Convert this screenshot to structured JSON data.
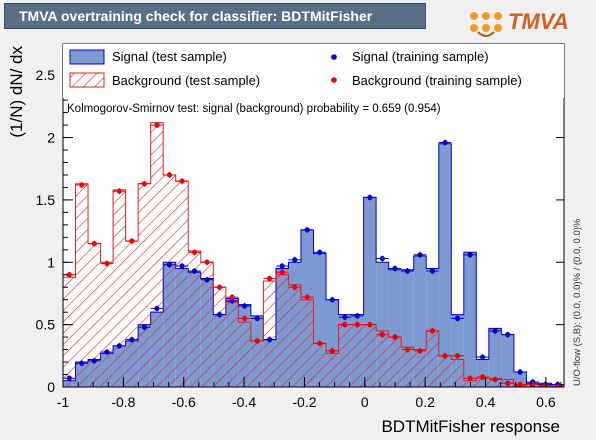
{
  "header": {
    "title": "TMVA overtraining check for classifier: BDTMitFisher",
    "logo_text": "TMVA"
  },
  "chart_data": {
    "type": "bar",
    "xlabel": "BDTMitFisher response",
    "ylabel": "(1/N) dN/ dx",
    "xlim": [
      -1.0,
      0.66
    ],
    "ylim": [
      0,
      2.75
    ],
    "x_ticks": [
      -1,
      -0.8,
      -0.6,
      -0.4,
      -0.2,
      0,
      0.2,
      0.4,
      0.6
    ],
    "x_tick_labels": [
      "-1",
      "-0.8",
      "-0.6",
      "-0.4",
      "-0.2",
      "0",
      "0.2",
      "0.4",
      "0.6"
    ],
    "y_ticks": [
      0,
      0.5,
      1,
      1.5,
      2,
      2.5
    ],
    "y_tick_labels": [
      "0",
      "0.5",
      "1",
      "1.5",
      "2",
      "2.5"
    ],
    "bin_edges_start": -1.0,
    "bin_width": 0.0415,
    "legend": {
      "signal_test": "Signal (test sample)",
      "background_test": "Background (test sample)",
      "signal_train": "Signal (training sample)",
      "background_train": "Background (training sample)"
    },
    "ks_text": "Kolmogorov-Smirnov test: signal (background) probability = 0.659 (0.954)",
    "overflow_text": "U/O-flow (S,B): (0.0, 0.0)% / (0.0, 0.0)%",
    "colors": {
      "signal_fill": "#7d99d1",
      "signal_line": "#0000cc",
      "background_hatch": "#dd2222",
      "signal_marker": "#0000cc",
      "background_marker": "#ee0000"
    },
    "series": [
      {
        "name": "Signal (test sample)",
        "values": [
          0.05,
          0.2,
          0.22,
          0.27,
          0.33,
          0.37,
          0.5,
          0.6,
          1.0,
          0.95,
          0.92,
          0.87,
          0.58,
          0.71,
          0.66,
          0.57,
          0.38,
          0.95,
          1.0,
          1.26,
          1.07,
          0.7,
          0.58,
          0.58,
          1.52,
          1.0,
          0.94,
          0.94,
          1.05,
          0.95,
          1.95,
          0.58,
          1.08,
          0.22,
          0.47,
          0.42,
          0.12,
          0.03,
          0.03,
          0.02,
          0.0,
          0.0
        ]
      },
      {
        "name": "Background (test sample)",
        "values": [
          0.88,
          1.63,
          1.15,
          1.0,
          1.58,
          1.17,
          1.63,
          2.12,
          1.7,
          1.65,
          1.09,
          1.0,
          0.8,
          0.68,
          0.52,
          0.37,
          0.85,
          0.9,
          0.82,
          0.7,
          0.35,
          0.27,
          0.5,
          0.5,
          0.5,
          0.45,
          0.4,
          0.32,
          0.3,
          0.45,
          0.25,
          0.22,
          0.05,
          0.07,
          0.07,
          0.06,
          0.01,
          0.02,
          0.01,
          0.01,
          0.0,
          0.0
        ]
      },
      {
        "name": "Signal (training sample)",
        "values": [
          0.07,
          0.19,
          0.21,
          0.28,
          0.33,
          0.38,
          0.48,
          0.63,
          0.98,
          0.97,
          0.93,
          0.86,
          0.58,
          0.69,
          0.65,
          0.55,
          0.38,
          0.97,
          1.02,
          1.26,
          1.08,
          0.7,
          0.56,
          0.57,
          1.52,
          1.03,
          0.95,
          0.93,
          1.06,
          0.93,
          1.96,
          0.55,
          1.06,
          0.24,
          0.45,
          0.42,
          0.12,
          0.04,
          0.02,
          0.02,
          0.01,
          0.0
        ]
      },
      {
        "name": "Background (training sample)",
        "values": [
          0.9,
          1.62,
          1.15,
          0.99,
          1.57,
          1.17,
          1.63,
          2.1,
          1.7,
          1.65,
          1.08,
          1.0,
          0.8,
          0.72,
          0.55,
          0.37,
          0.87,
          0.92,
          0.8,
          0.72,
          0.35,
          0.29,
          0.5,
          0.5,
          0.5,
          0.42,
          0.4,
          0.3,
          0.29,
          0.45,
          0.25,
          0.25,
          0.07,
          0.08,
          0.06,
          0.03,
          0.02,
          0.02,
          0.01,
          0.0,
          0.0,
          0.0
        ]
      }
    ]
  }
}
